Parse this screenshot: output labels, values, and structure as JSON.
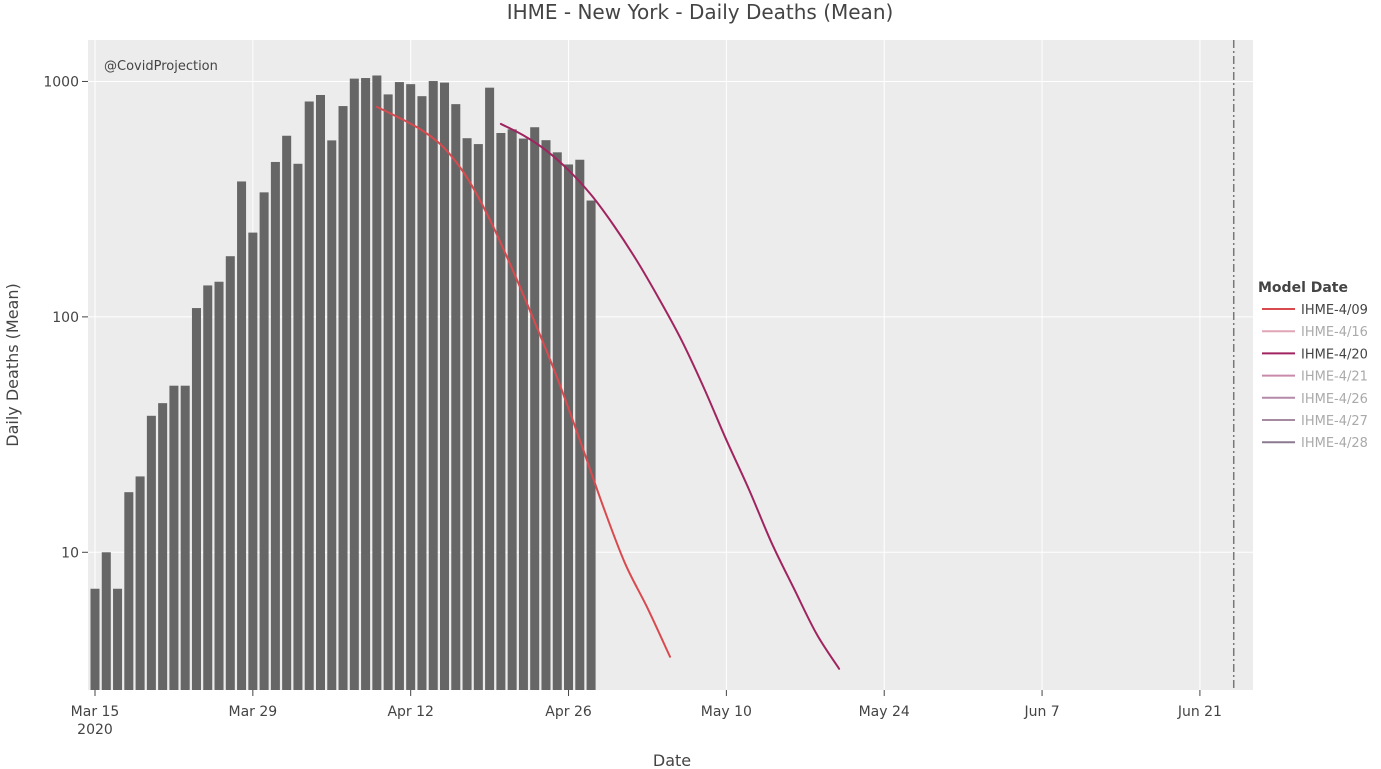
{
  "chart_data": {
    "type": "bar",
    "title": "IHME - New York - Daily Deaths (Mean)",
    "xlabel": "Date",
    "ylabel": "Daily Deaths (Mean)",
    "annotation": "@CovidProjection",
    "y_scale": "log",
    "ylim": [
      2.6,
      1500
    ],
    "xlim": [
      "2020-03-15",
      "2020-06-25"
    ],
    "y_ticks": [
      {
        "value": 10,
        "label": "10"
      },
      {
        "value": 100,
        "label": "100"
      },
      {
        "value": 1000,
        "label": "1000"
      }
    ],
    "x_ticks": [
      {
        "date": "2020-03-15",
        "label": "Mar 15",
        "sublabel": "2020"
      },
      {
        "date": "2020-03-29",
        "label": "Mar 29",
        "sublabel": ""
      },
      {
        "date": "2020-04-12",
        "label": "Apr 12",
        "sublabel": ""
      },
      {
        "date": "2020-04-26",
        "label": "Apr 26",
        "sublabel": ""
      },
      {
        "date": "2020-05-10",
        "label": "May 10",
        "sublabel": ""
      },
      {
        "date": "2020-05-24",
        "label": "May 24",
        "sublabel": ""
      },
      {
        "date": "2020-06-07",
        "label": "Jun 7",
        "sublabel": ""
      },
      {
        "date": "2020-06-21",
        "label": "Jun 21",
        "sublabel": ""
      }
    ],
    "vline_date": "2020-06-24",
    "bar_color": "#666666",
    "bars": {
      "x": [
        "2020-03-15",
        "2020-03-16",
        "2020-03-17",
        "2020-03-18",
        "2020-03-19",
        "2020-03-20",
        "2020-03-21",
        "2020-03-22",
        "2020-03-23",
        "2020-03-24",
        "2020-03-25",
        "2020-03-26",
        "2020-03-27",
        "2020-03-28",
        "2020-03-29",
        "2020-03-30",
        "2020-03-31",
        "2020-04-01",
        "2020-04-02",
        "2020-04-03",
        "2020-04-04",
        "2020-04-05",
        "2020-04-06",
        "2020-04-07",
        "2020-04-08",
        "2020-04-09",
        "2020-04-10",
        "2020-04-11",
        "2020-04-12",
        "2020-04-13",
        "2020-04-14",
        "2020-04-15",
        "2020-04-16",
        "2020-04-17",
        "2020-04-18",
        "2020-04-19",
        "2020-04-20",
        "2020-04-21",
        "2020-04-22",
        "2020-04-23",
        "2020-04-24",
        "2020-04-25",
        "2020-04-26",
        "2020-04-27",
        "2020-04-28",
        "2020-04-29"
      ],
      "values": [
        7,
        10,
        7,
        18,
        21,
        38,
        43,
        51,
        51,
        109,
        136,
        141,
        181,
        376,
        228,
        338,
        455,
        588,
        447,
        822,
        876,
        562,
        786,
        1028,
        1034,
        1060,
        881,
        994,
        974,
        866,
        1004,
        989,
        801,
        574,
        542,
        941,
        604,
        626,
        572,
        639,
        563,
        500,
        444,
        465,
        312,
        0
      ]
    },
    "legend": {
      "title": "Model Date",
      "placement": "right",
      "entries": [
        {
          "name": "IHME-4/09",
          "color": "#d94a4f",
          "text_color": "#444444"
        },
        {
          "name": "IHME-4/16",
          "color": "#e0a6b6",
          "text_color": "#aaaaaa"
        },
        {
          "name": "IHME-4/20",
          "color": "#a0245f",
          "text_color": "#444444"
        },
        {
          "name": "IHME-4/21",
          "color": "#c98aa9",
          "text_color": "#aaaaaa"
        },
        {
          "name": "IHME-4/26",
          "color": "#b58aa9",
          "text_color": "#aaaaaa"
        },
        {
          "name": "IHME-4/27",
          "color": "#a68aa2",
          "text_color": "#aaaaaa"
        },
        {
          "name": "IHME-4/28",
          "color": "#8a7a90",
          "text_color": "#aaaaaa"
        }
      ]
    },
    "series": [
      {
        "name": "IHME-4/09",
        "color": "#d94a4f",
        "x": [
          "2020-04-09",
          "2020-04-11",
          "2020-04-13",
          "2020-04-15",
          "2020-04-17",
          "2020-04-19",
          "2020-04-21",
          "2020-04-23",
          "2020-04-25",
          "2020-04-27",
          "2020-04-29",
          "2020-05-01",
          "2020-05-03",
          "2020-05-05"
        ],
        "values": [
          780,
          700,
          620,
          520,
          390,
          260,
          160,
          95,
          55,
          30,
          16,
          9,
          5.8,
          3.6
        ]
      },
      {
        "name": "IHME-4/20",
        "color": "#a0245f",
        "x": [
          "2020-04-20",
          "2020-04-22",
          "2020-04-24",
          "2020-04-26",
          "2020-04-28",
          "2020-04-30",
          "2020-05-02",
          "2020-05-04",
          "2020-05-06",
          "2020-05-08",
          "2020-05-10",
          "2020-05-12",
          "2020-05-14",
          "2020-05-16",
          "2020-05-18",
          "2020-05-20"
        ],
        "values": [
          660,
          590,
          510,
          420,
          330,
          245,
          175,
          120,
          80,
          50,
          30,
          18.5,
          11,
          7,
          4.5,
          3.2
        ]
      }
    ]
  }
}
